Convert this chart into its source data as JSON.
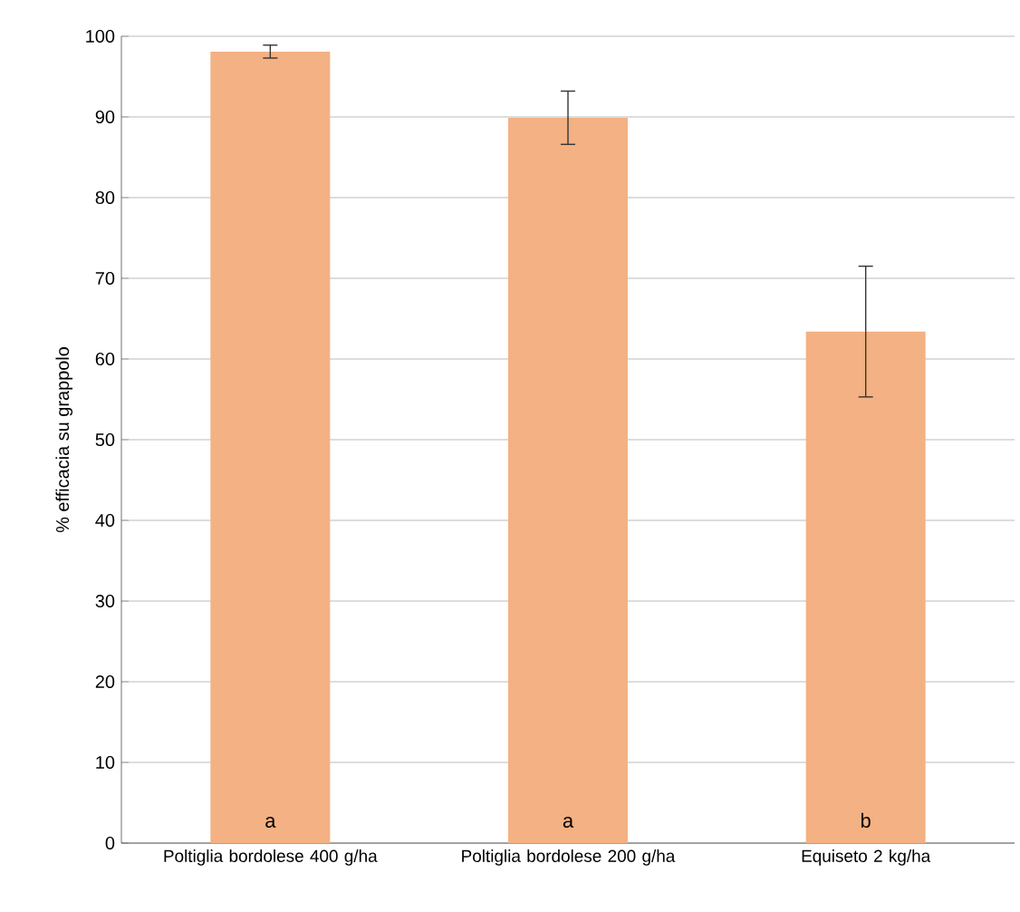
{
  "chart_data": {
    "type": "bar",
    "ylabel": "% efficacia su grappolo",
    "categories": [
      "Poltiglia bordolese 400 g/ha",
      "Poltiglia bordolese 200 g/ha",
      "Equiseto 2 kg/ha"
    ],
    "values": [
      98.1,
      89.9,
      63.4
    ],
    "errors": [
      0.8,
      3.3,
      8.1
    ],
    "color": "#f4b183",
    "ylim": [
      0,
      100
    ],
    "yticks": [
      0,
      10,
      20,
      30,
      40,
      50,
      60,
      70,
      80,
      90,
      100
    ],
    "grid": "y",
    "annotations": [
      "a",
      "a",
      "b"
    ]
  }
}
